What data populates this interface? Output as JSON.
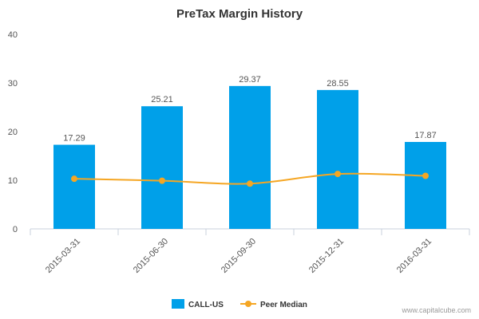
{
  "chart_data": {
    "type": "bar",
    "title": "PreTax Margin History",
    "categories": [
      "2015-03-31",
      "2015-06-30",
      "2015-09-30",
      "2015-12-31",
      "2016-03-31"
    ],
    "series": [
      {
        "name": "CALL-US",
        "type": "bar",
        "color": "#00a0e9",
        "values": [
          17.29,
          25.21,
          29.37,
          28.55,
          17.87
        ]
      },
      {
        "name": "Peer Median",
        "type": "line",
        "color": "#f5a623",
        "values": [
          10.3,
          9.9,
          9.3,
          11.3,
          10.9
        ]
      }
    ],
    "data_labels": [
      "17.29",
      "25.21",
      "29.37",
      "28.55",
      "17.87"
    ],
    "ylim": [
      0,
      40
    ],
    "yticks": [
      0,
      10,
      20,
      30,
      40
    ],
    "grid": false,
    "legend_position": "bottom"
  },
  "credit": "www.capitalcube.com"
}
